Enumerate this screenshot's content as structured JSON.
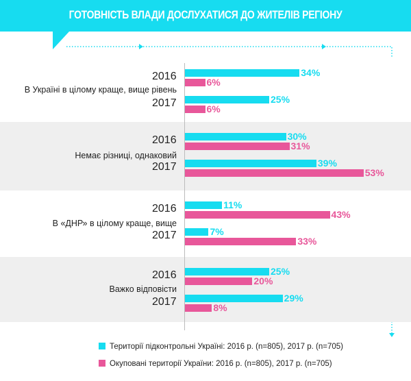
{
  "title": "ГОТОВНІСТЬ ВЛАДИ ДОСЛУХАТИСЯ ДО ЖИТЕЛІВ РЕГІОНУ",
  "colors": {
    "cyan": "#17dcf0",
    "pink": "#e8579a",
    "band": "#efefef"
  },
  "chart_data": {
    "type": "bar",
    "orientation": "horizontal",
    "title": "ГОТОВНІСТЬ ВЛАДИ ДОСЛУХАТИСЯ ДО ЖИТЕЛІВ РЕГІОНУ",
    "categories": [
      "В Україні в цілому краще, вище рівень",
      "Немає різниці, однаковий",
      "В «ДНР» в цілому краще, вище",
      "Важко відповісти"
    ],
    "years": [
      "2016",
      "2017"
    ],
    "series": [
      {
        "name": "Території підконтрольні Україні:  2016 р. (n=805), 2017 р. (n=705)",
        "values": {
          "2016": [
            34,
            30,
            11,
            25
          ],
          "2017": [
            25,
            39,
            7,
            29
          ]
        }
      },
      {
        "name": "Окуповані території України: 2016 р. (n=805), 2017 р. (n=705)",
        "values": {
          "2016": [
            6,
            31,
            43,
            20
          ],
          "2017": [
            6,
            53,
            33,
            8
          ]
        }
      }
    ],
    "unit": "%",
    "legend": "bottom"
  }
}
